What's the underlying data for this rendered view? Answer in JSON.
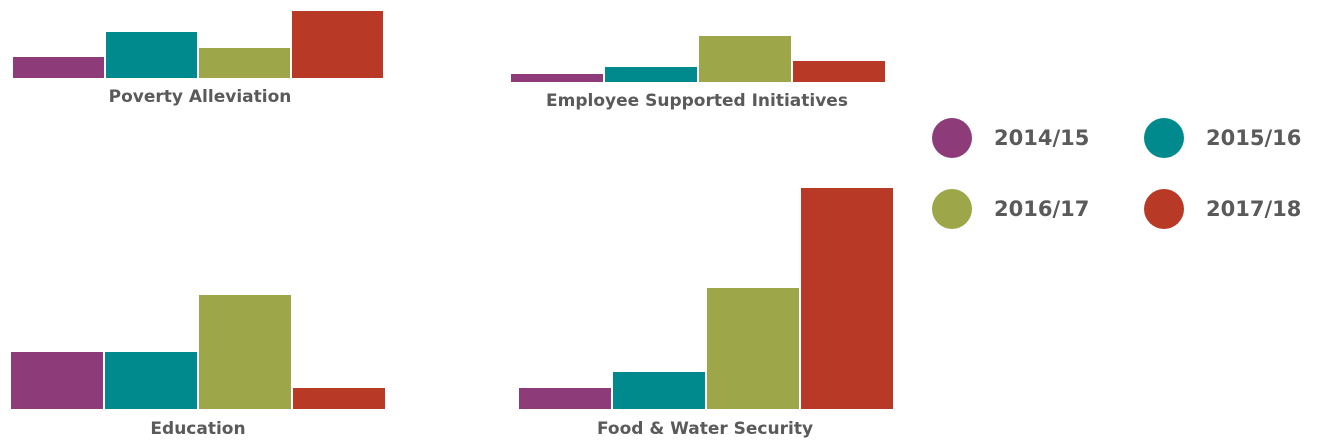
{
  "colors": {
    "2014/15": "#8e3b7a",
    "2015/16": "#008a8e",
    "2016/17": "#9da74a",
    "2017/18": "#b83a26",
    "label": "#5a5a5a"
  },
  "legend": {
    "items": [
      {
        "label": "2014/15",
        "color": "#8e3b7a"
      },
      {
        "label": "2015/16",
        "color": "#008a8e"
      },
      {
        "label": "2016/17",
        "color": "#9da74a"
      },
      {
        "label": "2017/18",
        "color": "#b83a26"
      }
    ]
  },
  "chart_data": [
    {
      "type": "bar",
      "title": "Poverty Alleviation",
      "categories": [
        "2014/15",
        "2015/16",
        "2016/17",
        "2017/18"
      ],
      "values": [
        21,
        46,
        30,
        67
      ]
    },
    {
      "type": "bar",
      "title": "Employee Supported Initiatives",
      "categories": [
        "2014/15",
        "2015/16",
        "2016/17",
        "2017/18"
      ],
      "values": [
        8,
        15,
        46,
        21
      ]
    },
    {
      "type": "bar",
      "title": "Education",
      "categories": [
        "2014/15",
        "2015/16",
        "2016/17",
        "2017/18"
      ],
      "values": [
        57,
        57,
        114,
        21
      ]
    },
    {
      "type": "bar",
      "title": "Food & Water Security",
      "categories": [
        "2014/15",
        "2015/16",
        "2016/17",
        "2017/18"
      ],
      "values": [
        21,
        37,
        121,
        221
      ]
    }
  ]
}
